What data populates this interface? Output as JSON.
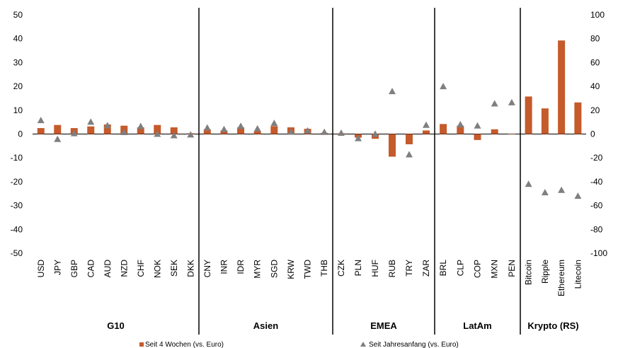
{
  "chart_data": {
    "type": "bar",
    "title": "",
    "xlabel": "",
    "ylabel": "",
    "y_left_lim": [
      -50,
      50
    ],
    "y_left_ticks": [
      -50,
      -40,
      -30,
      -20,
      -10,
      0,
      10,
      20,
      30,
      40,
      50
    ],
    "y_right_lim": [
      -100,
      100
    ],
    "y_right_ticks": [
      -100,
      -80,
      -60,
      -40,
      -20,
      0,
      20,
      40,
      60,
      80,
      100
    ],
    "groups": [
      {
        "name": "G10",
        "categories": [
          "USD",
          "JPY",
          "GBP",
          "CAD",
          "AUD",
          "NZD",
          "CHF",
          "NOK",
          "SEK",
          "DKK"
        ]
      },
      {
        "name": "Asien",
        "categories": [
          "CNY",
          "INR",
          "IDR",
          "MYR",
          "SGD",
          "KRW",
          "TWD",
          "THB"
        ]
      },
      {
        "name": "EMEA",
        "categories": [
          "CZK",
          "PLN",
          "HUF",
          "RUB",
          "TRY",
          "ZAR"
        ]
      },
      {
        "name": "LatAm",
        "categories": [
          "BRL",
          "CLP",
          "COP",
          "MXN",
          "PEN"
        ]
      },
      {
        "name": "Krypto (RS)",
        "categories": [
          "Bitcoin",
          "Ripple",
          "Ethereum",
          "Litecoin"
        ],
        "axis": "right"
      }
    ],
    "series": [
      {
        "name": "Seit 4 Wochen (vs. Euro)",
        "type": "bar",
        "color": "#C55A2B",
        "values": [
          2.5,
          3.8,
          2.5,
          3.2,
          4.0,
          3.5,
          2.8,
          3.8,
          2.8,
          0.3,
          2.0,
          1.5,
          2.8,
          1.2,
          3.3,
          2.8,
          2.2,
          0.5,
          0.3,
          -1.5,
          -2.0,
          -9.5,
          -4.3,
          1.5,
          4.2,
          3.5,
          -2.5,
          2.0,
          0.0,
          31.5,
          21.5,
          78.5,
          26.5
        ]
      },
      {
        "name": "Seit Jahresanfang (vs. Euro)",
        "type": "scatter",
        "marker": "triangle",
        "color": "#7F7F7F",
        "values": [
          11.5,
          -4.3,
          0.5,
          10.2,
          7.2,
          1.5,
          6.5,
          0.0,
          -1.2,
          -0.5,
          5.3,
          4.0,
          6.7,
          4.5,
          9.1,
          1.8,
          2.8,
          1.6,
          0.9,
          -3.6,
          0.1,
          35.8,
          -17.2,
          7.6,
          40.0,
          8.0,
          7.0,
          25.5,
          26.5,
          -42.0,
          -49.0,
          -47.0,
          -52.0
        ]
      }
    ],
    "legend": {
      "placement": "bottom"
    },
    "grid": false
  }
}
